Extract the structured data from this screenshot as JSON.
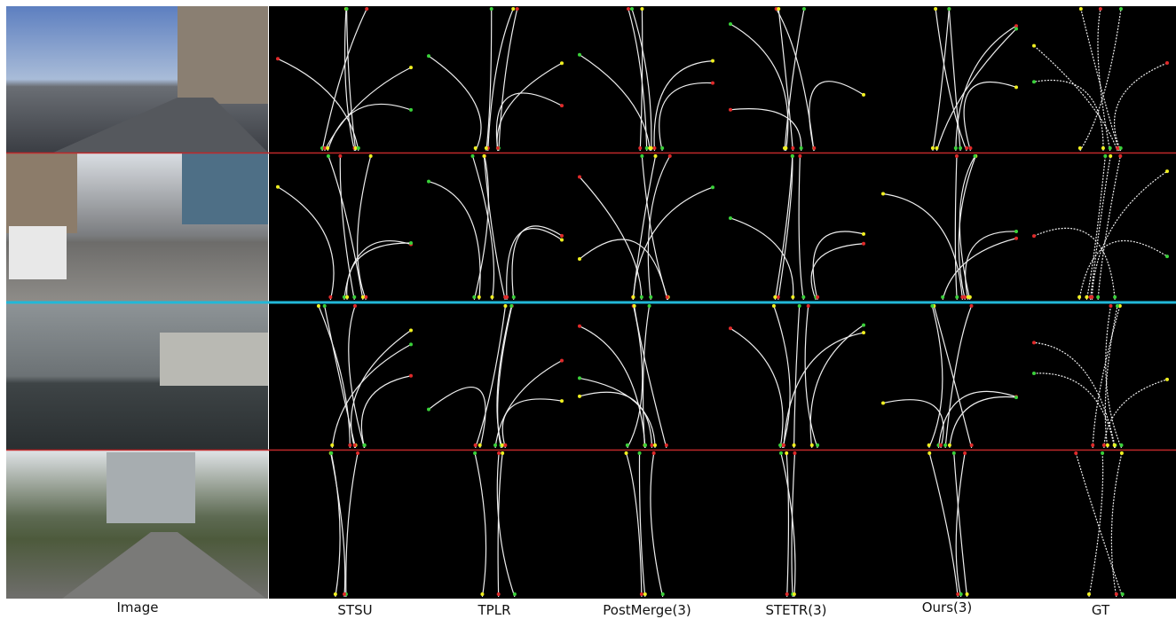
{
  "column_labels": [
    "Image",
    "STSU",
    "TPLR",
    "PostMerge(3)",
    "STETR(3)",
    "Ours(3)",
    "GT"
  ]
}
